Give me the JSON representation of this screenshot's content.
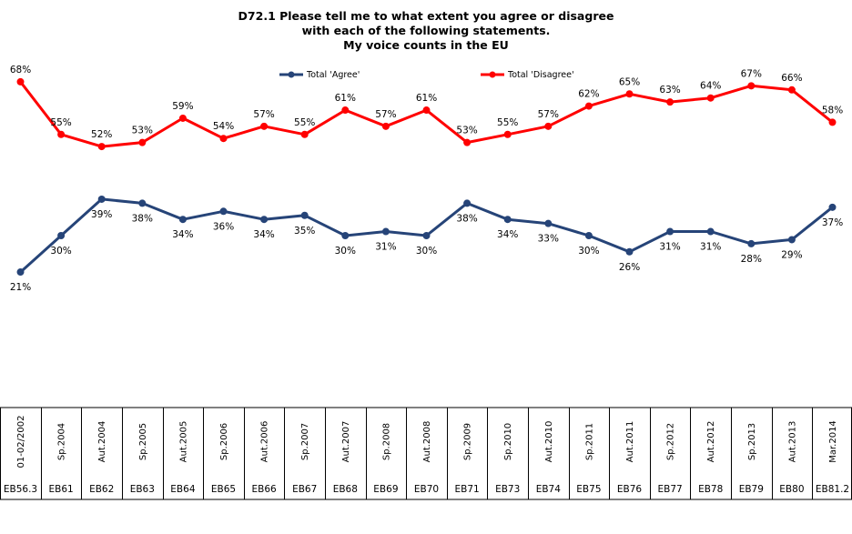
{
  "title": {
    "line1": "D72.1 Please tell me to what extent you agree or disagree",
    "line2": "with each of the following statements.",
    "line3": "My voice counts in the EU"
  },
  "colors": {
    "agree": "#264478",
    "disagree": "#FF0000"
  },
  "chart_data": {
    "type": "line",
    "categories": [
      "01-02/2002",
      "Sp.2004",
      "Aut.2004",
      "Sp.2005",
      "Aut.2005",
      "Sp.2006",
      "Aut.2006",
      "Sp.2007",
      "Aut.2007",
      "Sp.2008",
      "Aut.2008",
      "Sp.2009",
      "Sp.2010",
      "Aut.2010",
      "Sp.2011",
      "Aut.2011",
      "Sp.2012",
      "Aut.2012",
      "Sp.2013",
      "Aut.2013",
      "Mar.2014"
    ],
    "waves": [
      "EB56.3",
      "EB61",
      "EB62",
      "EB63",
      "EB64",
      "EB65",
      "EB66",
      "EB67",
      "EB68",
      "EB69",
      "EB70",
      "EB71",
      "EB73",
      "EB74",
      "EB75",
      "EB76",
      "EB77",
      "EB78",
      "EB79",
      "EB80",
      "EB81.2"
    ],
    "series": [
      {
        "name": "Total 'Agree'",
        "values": [
          21,
          30,
          39,
          38,
          34,
          36,
          34,
          35,
          30,
          31,
          30,
          38,
          34,
          33,
          30,
          26,
          31,
          31,
          28,
          29,
          37
        ]
      },
      {
        "name": "Total 'Disagree'",
        "values": [
          68,
          55,
          52,
          53,
          59,
          54,
          57,
          55,
          61,
          57,
          61,
          53,
          55,
          57,
          62,
          65,
          63,
          64,
          67,
          66,
          58
        ]
      }
    ],
    "value_suffix": "%",
    "legend_position": "top-center"
  }
}
